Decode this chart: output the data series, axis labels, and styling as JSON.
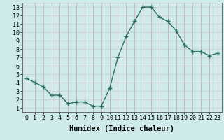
{
  "x": [
    0,
    1,
    2,
    3,
    4,
    5,
    6,
    7,
    8,
    9,
    10,
    11,
    12,
    13,
    14,
    15,
    16,
    17,
    18,
    19,
    20,
    21,
    22,
    23
  ],
  "y": [
    4.5,
    4.0,
    3.5,
    2.5,
    2.5,
    1.5,
    1.7,
    1.7,
    1.2,
    1.2,
    3.3,
    7.0,
    9.5,
    11.3,
    13.0,
    13.0,
    11.8,
    11.3,
    10.2,
    8.5,
    7.7,
    7.7,
    7.2,
    7.5
  ],
  "line_color": "#2d6e62",
  "marker": "+",
  "marker_size": 4,
  "bg_color": "#ceeaea",
  "grid_color_x": "#d4a0a0",
  "grid_color_y": "#c8c8d8",
  "xlabel": "Humidex (Indice chaleur)",
  "xlabel_fontsize": 7.5,
  "xlim": [
    -0.5,
    23.5
  ],
  "ylim": [
    0.5,
    13.5
  ],
  "yticks": [
    1,
    2,
    3,
    4,
    5,
    6,
    7,
    8,
    9,
    10,
    11,
    12,
    13
  ],
  "xticks": [
    0,
    1,
    2,
    3,
    4,
    5,
    6,
    7,
    8,
    9,
    10,
    11,
    12,
    13,
    14,
    15,
    16,
    17,
    18,
    19,
    20,
    21,
    22,
    23
  ],
  "tick_fontsize": 6,
  "line_width": 1.0
}
